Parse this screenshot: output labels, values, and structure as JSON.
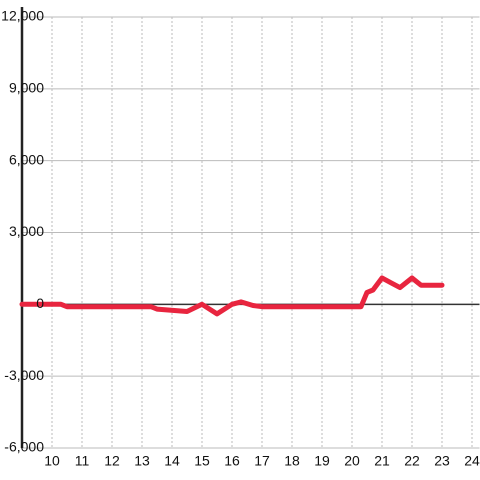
{
  "chart_data": {
    "type": "line",
    "x": [
      9,
      10.3,
      10.5,
      13.3,
      13.5,
      14.5,
      15,
      15.5,
      16,
      16.3,
      16.7,
      17,
      20.3,
      20.5,
      20.7,
      21,
      21.3,
      21.6,
      22,
      22.3,
      23
    ],
    "values": [
      0,
      0,
      -100,
      -100,
      -200,
      -300,
      0,
      -400,
      0,
      100,
      -50,
      -100,
      -100,
      500,
      600,
      1100,
      900,
      700,
      1100,
      800,
      800
    ],
    "color": "#e8253f",
    "xlim": [
      9,
      24.25
    ],
    "xticks": [
      10,
      11,
      12,
      13,
      14,
      15,
      16,
      17,
      18,
      19,
      20,
      21,
      22,
      23,
      24
    ],
    "ylim": [
      -6000,
      12000
    ],
    "yticks": [
      {
        "value": -6000,
        "label": "-6,000"
      },
      {
        "value": -3000,
        "label": "-3,000"
      },
      0,
      {
        "value": 3000,
        "label": "3,000"
      },
      {
        "value": 6000,
        "label": "6,000"
      },
      {
        "value": 9000,
        "label": "9,000"
      },
      {
        "value": 12000,
        "label": "12,000"
      }
    ],
    "grid": true
  }
}
